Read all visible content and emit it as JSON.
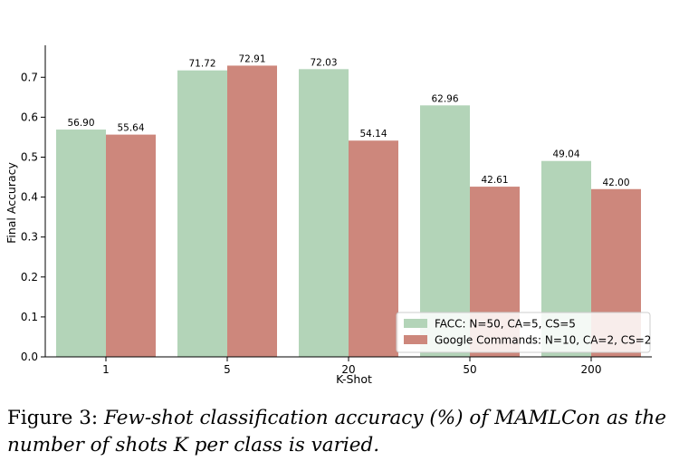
{
  "chart_data": {
    "type": "bar",
    "categories": [
      "1",
      "5",
      "20",
      "50",
      "200"
    ],
    "series": [
      {
        "name": "FACC: N=50, CA=5, CS=5",
        "color": "#b3d4b8",
        "values": [
          0.569,
          0.7172,
          0.7203,
          0.6296,
          0.4904
        ],
        "labels": [
          "56.90",
          "71.72",
          "72.03",
          "62.96",
          "49.04"
        ]
      },
      {
        "name": "Google Commands: N=10, CA=2, CS=2",
        "color": "#cd877c",
        "values": [
          0.5564,
          0.7291,
          0.5414,
          0.4261,
          0.42
        ],
        "labels": [
          "55.64",
          "72.91",
          "54.14",
          "42.61",
          "42.00"
        ]
      }
    ],
    "xlabel": "K-Shot",
    "ylabel": "Final Accuracy",
    "ylim": [
      0,
      0.78
    ],
    "yticks": [
      0.0,
      0.1,
      0.2,
      0.3,
      0.4,
      0.5,
      0.6,
      0.7
    ],
    "ytick_labels": [
      "0.0",
      "0.1",
      "0.2",
      "0.3",
      "0.4",
      "0.5",
      "0.6",
      "0.7"
    ],
    "grid": false,
    "legend_position": "bottom-right"
  },
  "caption": {
    "lead": "Figure 3:",
    "text": "Few-shot classification accuracy (%) of MAMLCon as the number of shots K per class is varied."
  }
}
